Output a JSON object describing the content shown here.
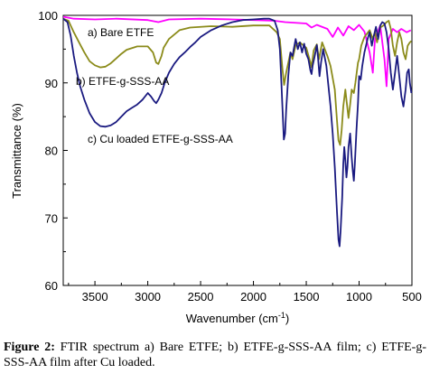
{
  "chart_data": {
    "type": "line",
    "xlabel": "Wavenumber (cm",
    "xlabel_sup": "-1",
    "xlabel_close": ")",
    "ylabel": "Transmittance (%)",
    "xlim": [
      3800,
      500
    ],
    "ylim": [
      60,
      100
    ],
    "x_reversed": true,
    "x_ticks": [
      3500,
      3000,
      2500,
      2000,
      1500,
      1000,
      500
    ],
    "y_ticks": [
      60,
      70,
      80,
      90,
      100
    ],
    "grid": false,
    "series": [
      {
        "name": "a) Bare ETFE",
        "color": "#ff00ff",
        "points": [
          [
            3800,
            99.8
          ],
          [
            3700,
            99.5
          ],
          [
            3500,
            99.4
          ],
          [
            3300,
            99.5
          ],
          [
            3000,
            99.3
          ],
          [
            2900,
            99.0
          ],
          [
            2800,
            99.4
          ],
          [
            2500,
            99.5
          ],
          [
            2200,
            99.4
          ],
          [
            2000,
            99.3
          ],
          [
            1800,
            99.2
          ],
          [
            1700,
            99.0
          ],
          [
            1500,
            98.8
          ],
          [
            1450,
            98.2
          ],
          [
            1400,
            98.6
          ],
          [
            1300,
            98.0
          ],
          [
            1250,
            96.8
          ],
          [
            1200,
            98.2
          ],
          [
            1150,
            97.0
          ],
          [
            1100,
            98.4
          ],
          [
            1050,
            97.8
          ],
          [
            1000,
            98.6
          ],
          [
            950,
            97.6
          ],
          [
            900,
            94.5
          ],
          [
            870,
            91.5
          ],
          [
            850,
            96.5
          ],
          [
            800,
            98.5
          ],
          [
            760,
            93.5
          ],
          [
            740,
            89.5
          ],
          [
            720,
            96.5
          ],
          [
            680,
            98.0
          ],
          [
            640,
            97.5
          ],
          [
            600,
            98.0
          ],
          [
            550,
            97.5
          ],
          [
            510,
            97.8
          ]
        ]
      },
      {
        "name": "b) ETFE-g-SSS-AA",
        "color": "#8b8b1a",
        "points": [
          [
            3800,
            99.5
          ],
          [
            3750,
            99.2
          ],
          [
            3700,
            97.5
          ],
          [
            3650,
            96.0
          ],
          [
            3600,
            94.5
          ],
          [
            3550,
            93.2
          ],
          [
            3500,
            92.6
          ],
          [
            3450,
            92.3
          ],
          [
            3400,
            92.4
          ],
          [
            3350,
            92.9
          ],
          [
            3300,
            93.6
          ],
          [
            3250,
            94.3
          ],
          [
            3200,
            94.9
          ],
          [
            3100,
            95.4
          ],
          [
            3000,
            95.4
          ],
          [
            2950,
            94.5
          ],
          [
            2920,
            93.0
          ],
          [
            2900,
            92.8
          ],
          [
            2870,
            94.0
          ],
          [
            2850,
            95.2
          ],
          [
            2800,
            96.5
          ],
          [
            2700,
            97.8
          ],
          [
            2600,
            98.2
          ],
          [
            2400,
            98.4
          ],
          [
            2200,
            98.3
          ],
          [
            2000,
            98.5
          ],
          [
            1850,
            98.5
          ],
          [
            1780,
            97.5
          ],
          [
            1750,
            96.5
          ],
          [
            1725,
            92.0
          ],
          [
            1710,
            89.7
          ],
          [
            1690,
            91.5
          ],
          [
            1650,
            94.5
          ],
          [
            1630,
            93.5
          ],
          [
            1600,
            95.6
          ],
          [
            1560,
            96.0
          ],
          [
            1500,
            95.2
          ],
          [
            1460,
            93.0
          ],
          [
            1450,
            92.3
          ],
          [
            1430,
            94.8
          ],
          [
            1400,
            95.7
          ],
          [
            1380,
            93.5
          ],
          [
            1350,
            96.0
          ],
          [
            1300,
            94.0
          ],
          [
            1270,
            92.5
          ],
          [
            1230,
            89.0
          ],
          [
            1210,
            84.5
          ],
          [
            1195,
            81.5
          ],
          [
            1180,
            80.8
          ],
          [
            1165,
            83.0
          ],
          [
            1150,
            86.5
          ],
          [
            1130,
            89.0
          ],
          [
            1120,
            87.5
          ],
          [
            1100,
            84.8
          ],
          [
            1085,
            86.8
          ],
          [
            1070,
            89.0
          ],
          [
            1050,
            88.5
          ],
          [
            1035,
            90.0
          ],
          [
            1010,
            93.0
          ],
          [
            1000,
            93.5
          ],
          [
            980,
            95.5
          ],
          [
            950,
            96.8
          ],
          [
            900,
            97.8
          ],
          [
            870,
            96.5
          ],
          [
            850,
            97.5
          ],
          [
            830,
            96.0
          ],
          [
            800,
            98.2
          ],
          [
            770,
            98.5
          ],
          [
            740,
            99.0
          ],
          [
            720,
            99.2
          ],
          [
            700,
            98.0
          ],
          [
            680,
            95.5
          ],
          [
            660,
            94.0
          ],
          [
            640,
            96.0
          ],
          [
            620,
            97.5
          ],
          [
            600,
            96.5
          ],
          [
            580,
            94.5
          ],
          [
            560,
            93.5
          ],
          [
            540,
            95.5
          ],
          [
            520,
            96.0
          ],
          [
            505,
            96.2
          ]
        ]
      },
      {
        "name": "c) Cu loaded ETFE-g-SSS-AA",
        "color": "#1a1a80",
        "points": [
          [
            3800,
            99.5
          ],
          [
            3760,
            99.0
          ],
          [
            3730,
            97.0
          ],
          [
            3700,
            94.0
          ],
          [
            3670,
            91.5
          ],
          [
            3640,
            89.5
          ],
          [
            3600,
            87.5
          ],
          [
            3550,
            85.5
          ],
          [
            3500,
            84.2
          ],
          [
            3450,
            83.6
          ],
          [
            3400,
            83.5
          ],
          [
            3350,
            83.7
          ],
          [
            3300,
            84.2
          ],
          [
            3250,
            85.0
          ],
          [
            3200,
            85.8
          ],
          [
            3150,
            86.3
          ],
          [
            3100,
            86.8
          ],
          [
            3050,
            87.5
          ],
          [
            3000,
            88.5
          ],
          [
            2970,
            88.0
          ],
          [
            2940,
            87.3
          ],
          [
            2920,
            87.0
          ],
          [
            2900,
            87.5
          ],
          [
            2870,
            88.5
          ],
          [
            2840,
            90.0
          ],
          [
            2800,
            91.5
          ],
          [
            2750,
            92.8
          ],
          [
            2700,
            93.8
          ],
          [
            2650,
            94.5
          ],
          [
            2600,
            95.3
          ],
          [
            2550,
            96.0
          ],
          [
            2500,
            96.8
          ],
          [
            2400,
            97.8
          ],
          [
            2300,
            98.5
          ],
          [
            2200,
            99.0
          ],
          [
            2100,
            99.3
          ],
          [
            2000,
            99.4
          ],
          [
            1900,
            99.5
          ],
          [
            1850,
            99.5
          ],
          [
            1800,
            99.2
          ],
          [
            1770,
            97.8
          ],
          [
            1750,
            95.0
          ],
          [
            1735,
            90.0
          ],
          [
            1722,
            85.0
          ],
          [
            1712,
            81.6
          ],
          [
            1700,
            82.5
          ],
          [
            1690,
            86.0
          ],
          [
            1670,
            91.0
          ],
          [
            1650,
            94.5
          ],
          [
            1630,
            94.0
          ],
          [
            1600,
            96.5
          ],
          [
            1580,
            95.0
          ],
          [
            1560,
            96.0
          ],
          [
            1540,
            94.5
          ],
          [
            1520,
            95.8
          ],
          [
            1500,
            94.3
          ],
          [
            1480,
            93.5
          ],
          [
            1460,
            91.8
          ],
          [
            1450,
            91.3
          ],
          [
            1440,
            92.5
          ],
          [
            1420,
            94.0
          ],
          [
            1400,
            95.6
          ],
          [
            1390,
            94.0
          ],
          [
            1375,
            91.0
          ],
          [
            1360,
            93.0
          ],
          [
            1340,
            95.0
          ],
          [
            1310,
            92.5
          ],
          [
            1290,
            89.5
          ],
          [
            1270,
            86.5
          ],
          [
            1250,
            82.5
          ],
          [
            1230,
            77.5
          ],
          [
            1210,
            71.0
          ],
          [
            1195,
            66.8
          ],
          [
            1185,
            65.8
          ],
          [
            1175,
            68.0
          ],
          [
            1160,
            73.0
          ],
          [
            1150,
            78.0
          ],
          [
            1140,
            80.5
          ],
          [
            1130,
            78.5
          ],
          [
            1120,
            76.0
          ],
          [
            1110,
            77.5
          ],
          [
            1100,
            80.5
          ],
          [
            1085,
            82.5
          ],
          [
            1070,
            79.0
          ],
          [
            1060,
            77.0
          ],
          [
            1050,
            75.5
          ],
          [
            1040,
            78.0
          ],
          [
            1025,
            83.0
          ],
          [
            1010,
            87.0
          ],
          [
            1000,
            91.0
          ],
          [
            985,
            90.5
          ],
          [
            970,
            92.5
          ],
          [
            950,
            94.5
          ],
          [
            920,
            96.5
          ],
          [
            900,
            97.5
          ],
          [
            880,
            95.5
          ],
          [
            860,
            97.0
          ],
          [
            840,
            98.3
          ],
          [
            820,
            96.5
          ],
          [
            800,
            98.5
          ],
          [
            780,
            99.0
          ],
          [
            760,
            98.8
          ],
          [
            740,
            97.5
          ],
          [
            720,
            95.0
          ],
          [
            700,
            91.5
          ],
          [
            680,
            89.0
          ],
          [
            660,
            91.5
          ],
          [
            640,
            94.0
          ],
          [
            620,
            91.0
          ],
          [
            600,
            88.0
          ],
          [
            580,
            86.5
          ],
          [
            560,
            89.0
          ],
          [
            545,
            91.5
          ],
          [
            530,
            92.0
          ],
          [
            520,
            90.0
          ],
          [
            505,
            88.5
          ]
        ]
      }
    ]
  },
  "caption": {
    "label": "Figure 2:",
    "text": " FTIR spectrum a) Bare ETFE; b) ETFE-g-SSS-AA film; c) ETFE-g-SSS-AA film after Cu loaded."
  }
}
